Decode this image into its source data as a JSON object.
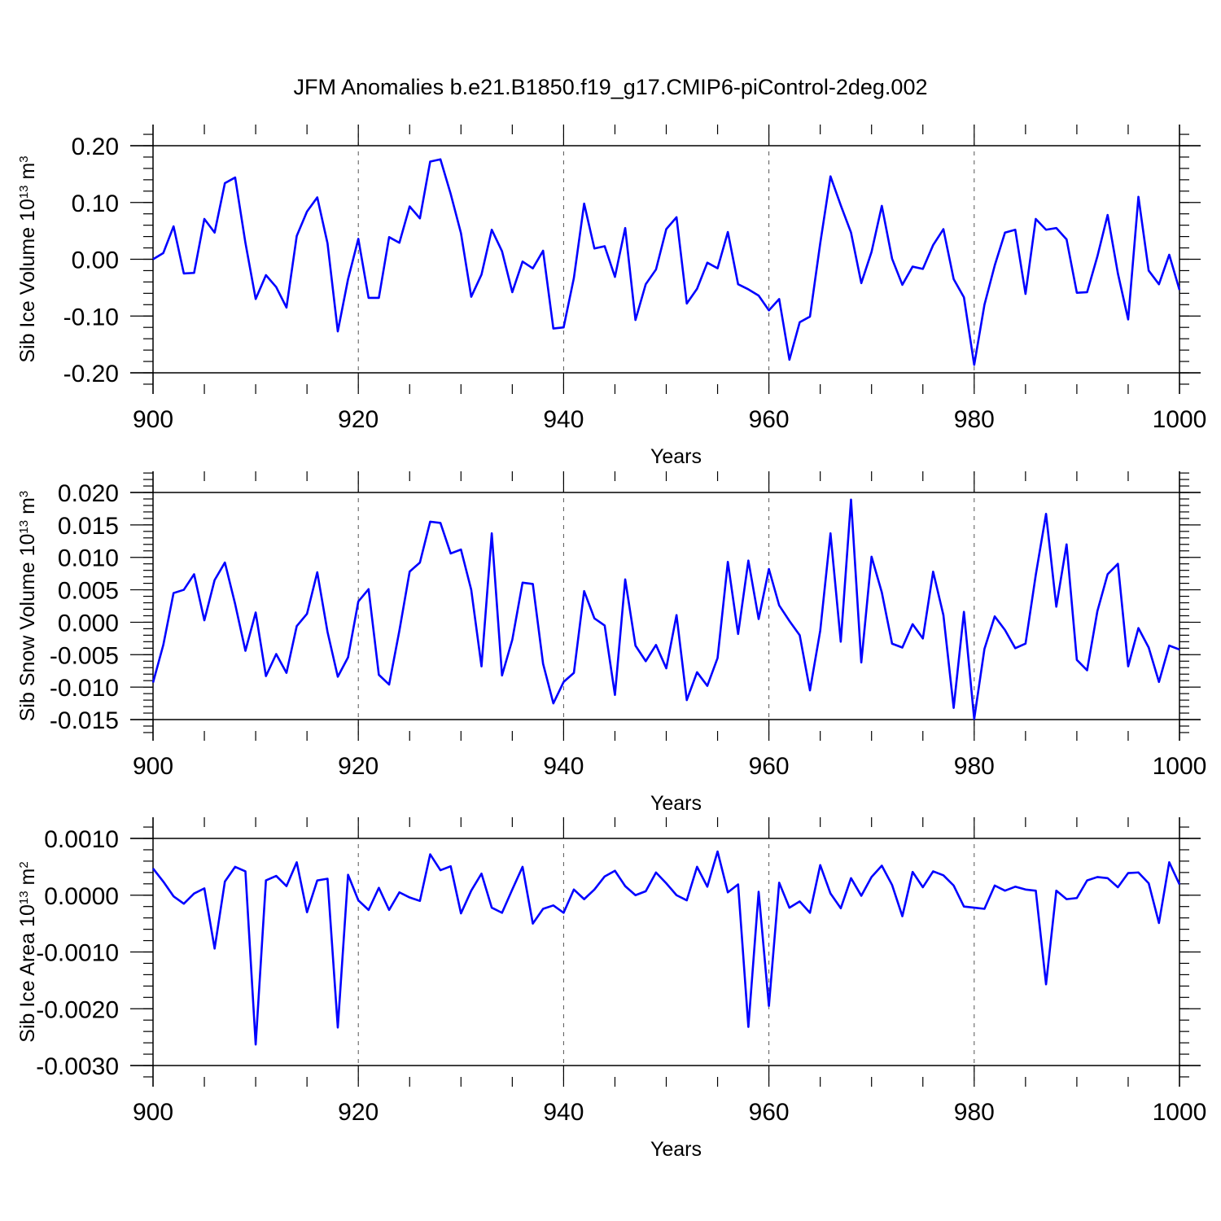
{
  "title": "JFM Anomalies b.e21.B1850.f19_g17.CMIP6-piControl-2deg.002",
  "chart_data": [
    {
      "type": "line",
      "ylabel": "Sib Ice Volume 10",
      "ylabel_exp": "13",
      "ylabel_unit": " m",
      "ylabel_unit_exp": "3",
      "xlabel": "Years",
      "xlim": [
        900,
        1000
      ],
      "ylim": [
        -0.2,
        0.2
      ],
      "x_ticks": [
        900,
        920,
        940,
        960,
        980,
        1000
      ],
      "x_tick_labels": [
        "900",
        "920",
        "940",
        "960",
        "980",
        "1000"
      ],
      "y_ticks": [
        -0.2,
        -0.1,
        0.0,
        0.1,
        0.2
      ],
      "y_tick_labels": [
        "-0.20",
        "-0.10",
        "0.00",
        "0.10",
        "0.20"
      ],
      "grid_x": [
        920,
        940,
        960,
        980
      ],
      "series": [
        {
          "name": "Sib Ice Volume",
          "color": "#0000ff",
          "x_start": 900,
          "values": [
            0.0,
            0.011,
            0.058,
            -0.025,
            -0.024,
            0.071,
            0.047,
            0.134,
            0.144,
            0.029,
            -0.07,
            -0.028,
            -0.049,
            -0.085,
            0.041,
            0.084,
            0.109,
            0.028,
            -0.127,
            -0.035,
            0.036,
            -0.068,
            -0.068,
            0.039,
            0.029,
            0.093,
            0.072,
            0.172,
            0.176,
            0.115,
            0.046,
            -0.066,
            -0.027,
            0.052,
            0.014,
            -0.058,
            -0.004,
            -0.016,
            0.015,
            -0.122,
            -0.12,
            -0.033,
            0.098,
            0.019,
            0.023,
            -0.031,
            0.055,
            -0.107,
            -0.044,
            -0.018,
            0.053,
            0.074,
            -0.078,
            -0.052,
            -0.006,
            -0.016,
            0.048,
            -0.044,
            -0.053,
            -0.064,
            -0.09,
            -0.07,
            -0.177,
            -0.111,
            -0.101,
            0.028,
            0.146,
            0.095,
            0.047,
            -0.042,
            0.013,
            0.094,
            0.001,
            -0.045,
            -0.013,
            -0.017,
            0.025,
            0.053,
            -0.035,
            -0.067,
            -0.186,
            -0.08,
            -0.011,
            0.047,
            0.052,
            -0.061,
            0.071,
            0.052,
            0.055,
            0.035,
            -0.059,
            -0.058,
            0.005,
            0.078,
            -0.025,
            -0.106,
            0.11,
            -0.02,
            -0.044,
            0.008,
            -0.054
          ]
        }
      ]
    },
    {
      "type": "line",
      "ylabel": "Sib Snow Volume 10",
      "ylabel_exp": "13",
      "ylabel_unit": " m",
      "ylabel_unit_exp": "3",
      "xlabel": "Years",
      "xlim": [
        900,
        1000
      ],
      "ylim": [
        -0.015,
        0.02
      ],
      "x_ticks": [
        900,
        920,
        940,
        960,
        980,
        1000
      ],
      "x_tick_labels": [
        "900",
        "920",
        "940",
        "960",
        "980",
        "1000"
      ],
      "y_ticks": [
        -0.015,
        -0.01,
        -0.005,
        0.0,
        0.005,
        0.01,
        0.015,
        0.02
      ],
      "y_tick_labels": [
        "-0.015",
        "-0.010",
        "-0.005",
        "0.000",
        "0.005",
        "0.010",
        "0.015",
        "0.020"
      ],
      "grid_x": [
        920,
        940,
        960,
        980
      ],
      "series": [
        {
          "name": "Sib Snow Volume",
          "color": "#0000ff",
          "x_start": 900,
          "values": [
            -0.0093,
            -0.0035,
            0.0045,
            0.005,
            0.0074,
            0.0003,
            0.0065,
            0.0092,
            0.0028,
            -0.0044,
            0.0015,
            -0.0083,
            -0.0049,
            -0.0078,
            -0.0006,
            0.0013,
            0.0077,
            -0.0015,
            -0.0084,
            -0.0054,
            0.0032,
            0.0051,
            -0.0081,
            -0.0096,
            -0.0013,
            0.0078,
            0.0092,
            0.0155,
            0.0153,
            0.0106,
            0.0112,
            0.005,
            -0.0068,
            0.0137,
            -0.0082,
            -0.0027,
            0.0061,
            0.0059,
            -0.0064,
            -0.0125,
            -0.0092,
            -0.0078,
            0.0048,
            0.0006,
            -0.0005,
            -0.0112,
            0.0066,
            -0.0036,
            -0.006,
            -0.0035,
            -0.0071,
            0.0011,
            -0.012,
            -0.0077,
            -0.0098,
            -0.0055,
            0.0093,
            -0.0018,
            0.0095,
            0.0005,
            0.0082,
            0.0026,
            0.0002,
            -0.002,
            -0.0105,
            -0.0013,
            0.0137,
            -0.003,
            0.0189,
            -0.0062,
            0.0101,
            0.0046,
            -0.0033,
            -0.0039,
            -0.0003,
            -0.0025,
            0.0078,
            0.0011,
            -0.0132,
            0.0016,
            -0.0149,
            -0.0041,
            0.0009,
            -0.0012,
            -0.004,
            -0.0033,
            0.0073,
            0.0167,
            0.0024,
            0.012,
            -0.0058,
            -0.0074,
            0.0017,
            0.0074,
            0.009,
            -0.0068,
            -0.0009,
            -0.0039,
            -0.0092,
            -0.0036,
            -0.0042
          ]
        }
      ]
    },
    {
      "type": "line",
      "ylabel": "Sib Ice Area 10",
      "ylabel_exp": "13",
      "ylabel_unit": " m",
      "ylabel_unit_exp": "2",
      "xlabel": "Years",
      "xlim": [
        900,
        1000
      ],
      "ylim": [
        -0.003,
        0.001
      ],
      "x_ticks": [
        900,
        920,
        940,
        960,
        980,
        1000
      ],
      "x_tick_labels": [
        "900",
        "920",
        "940",
        "960",
        "980",
        "1000"
      ],
      "y_ticks": [
        -0.003,
        -0.002,
        -0.001,
        0.0,
        0.001
      ],
      "y_tick_labels": [
        "-0.0030",
        "-0.0020",
        "-0.0010",
        "0.0000",
        "0.0010"
      ],
      "grid_x": [
        920,
        940,
        960,
        980
      ],
      "series": [
        {
          "name": "Sib Ice Area",
          "color": "#0000ff",
          "x_start": 900,
          "values": [
            0.00047,
            0.00024,
            -2e-05,
            -0.00015,
            3e-05,
            0.00012,
            -0.00094,
            0.00024,
            0.0005,
            0.00042,
            -0.00263,
            0.00026,
            0.00034,
            0.00016,
            0.00058,
            -0.0003,
            0.00026,
            0.00029,
            -0.00233,
            0.00036,
            -9e-05,
            -0.00026,
            0.00013,
            -0.00026,
            5e-05,
            -4e-05,
            -0.0001,
            0.00072,
            0.00044,
            0.00051,
            -0.00032,
            8e-05,
            0.00038,
            -0.00022,
            -0.00031,
            0.0001,
            0.0005,
            -0.0005,
            -0.00024,
            -0.00018,
            -0.00031,
            0.0001,
            -7e-05,
            0.0001,
            0.00033,
            0.00043,
            0.00016,
            0.0,
            7e-05,
            0.0004,
            0.00021,
            0.0,
            -9e-05,
            0.0005,
            0.00015,
            0.00077,
            5e-05,
            0.00019,
            -0.00232,
            6e-05,
            -0.00195,
            0.00022,
            -0.00022,
            -0.00011,
            -0.00031,
            0.00053,
            3e-05,
            -0.00023,
            0.0003,
            -1e-05,
            0.00032,
            0.00052,
            0.00018,
            -0.00037,
            0.00041,
            0.00014,
            0.00042,
            0.00035,
            0.00017,
            -0.0002,
            -0.00022,
            -0.00024,
            0.00017,
            8e-05,
            0.00015,
            0.0001,
            8e-05,
            -0.00157,
            8e-05,
            -7e-05,
            -5e-05,
            0.00026,
            0.00032,
            0.0003,
            0.00014,
            0.00039,
            0.0004,
            0.00021,
            -0.00049,
            0.00058,
            0.00019
          ]
        }
      ]
    }
  ]
}
